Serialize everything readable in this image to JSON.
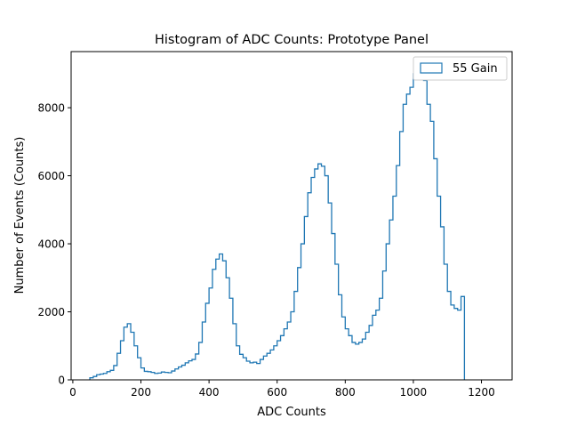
{
  "chart_data": {
    "type": "histogram",
    "title": "Histogram of ADC Counts: Prototype Panel",
    "xlabel": "ADC Counts",
    "ylabel": "Number of Events (Counts)",
    "xlim": [
      -5,
      1290
    ],
    "ylim": [
      0,
      9650
    ],
    "xticks": [
      0,
      200,
      400,
      600,
      800,
      1000,
      1200
    ],
    "yticks": [
      0,
      2000,
      4000,
      6000,
      8000
    ],
    "grid": false,
    "legend": {
      "position": "top-right",
      "entries": [
        "55 Gain"
      ]
    },
    "series": [
      {
        "name": "55 Gain",
        "color": "#1f77b4",
        "style": "step",
        "bin_edges_start": 50,
        "bin_width": 10,
        "counts": [
          60,
          100,
          150,
          170,
          190,
          240,
          280,
          420,
          780,
          1150,
          1550,
          1650,
          1400,
          1000,
          650,
          350,
          250,
          240,
          220,
          190,
          200,
          230,
          220,
          210,
          260,
          320,
          380,
          430,
          500,
          560,
          600,
          760,
          1100,
          1700,
          2250,
          2700,
          3250,
          3550,
          3700,
          3500,
          3000,
          2400,
          1650,
          1000,
          750,
          650,
          550,
          500,
          520,
          480,
          600,
          700,
          780,
          880,
          1000,
          1150,
          1300,
          1500,
          1700,
          2000,
          2600,
          3300,
          4000,
          4800,
          5500,
          5950,
          6200,
          6350,
          6280,
          6000,
          5200,
          4300,
          3400,
          2500,
          1850,
          1500,
          1300,
          1100,
          1050,
          1100,
          1200,
          1400,
          1600,
          1900,
          2050,
          2400,
          3200,
          4000,
          4700,
          5400,
          6300,
          7300,
          8100,
          8400,
          8600,
          9000,
          9300,
          9200,
          8800,
          8100,
          7600,
          6500,
          5400,
          4500,
          3400,
          2600,
          2200,
          2100,
          2050,
          2450
        ]
      }
    ]
  }
}
